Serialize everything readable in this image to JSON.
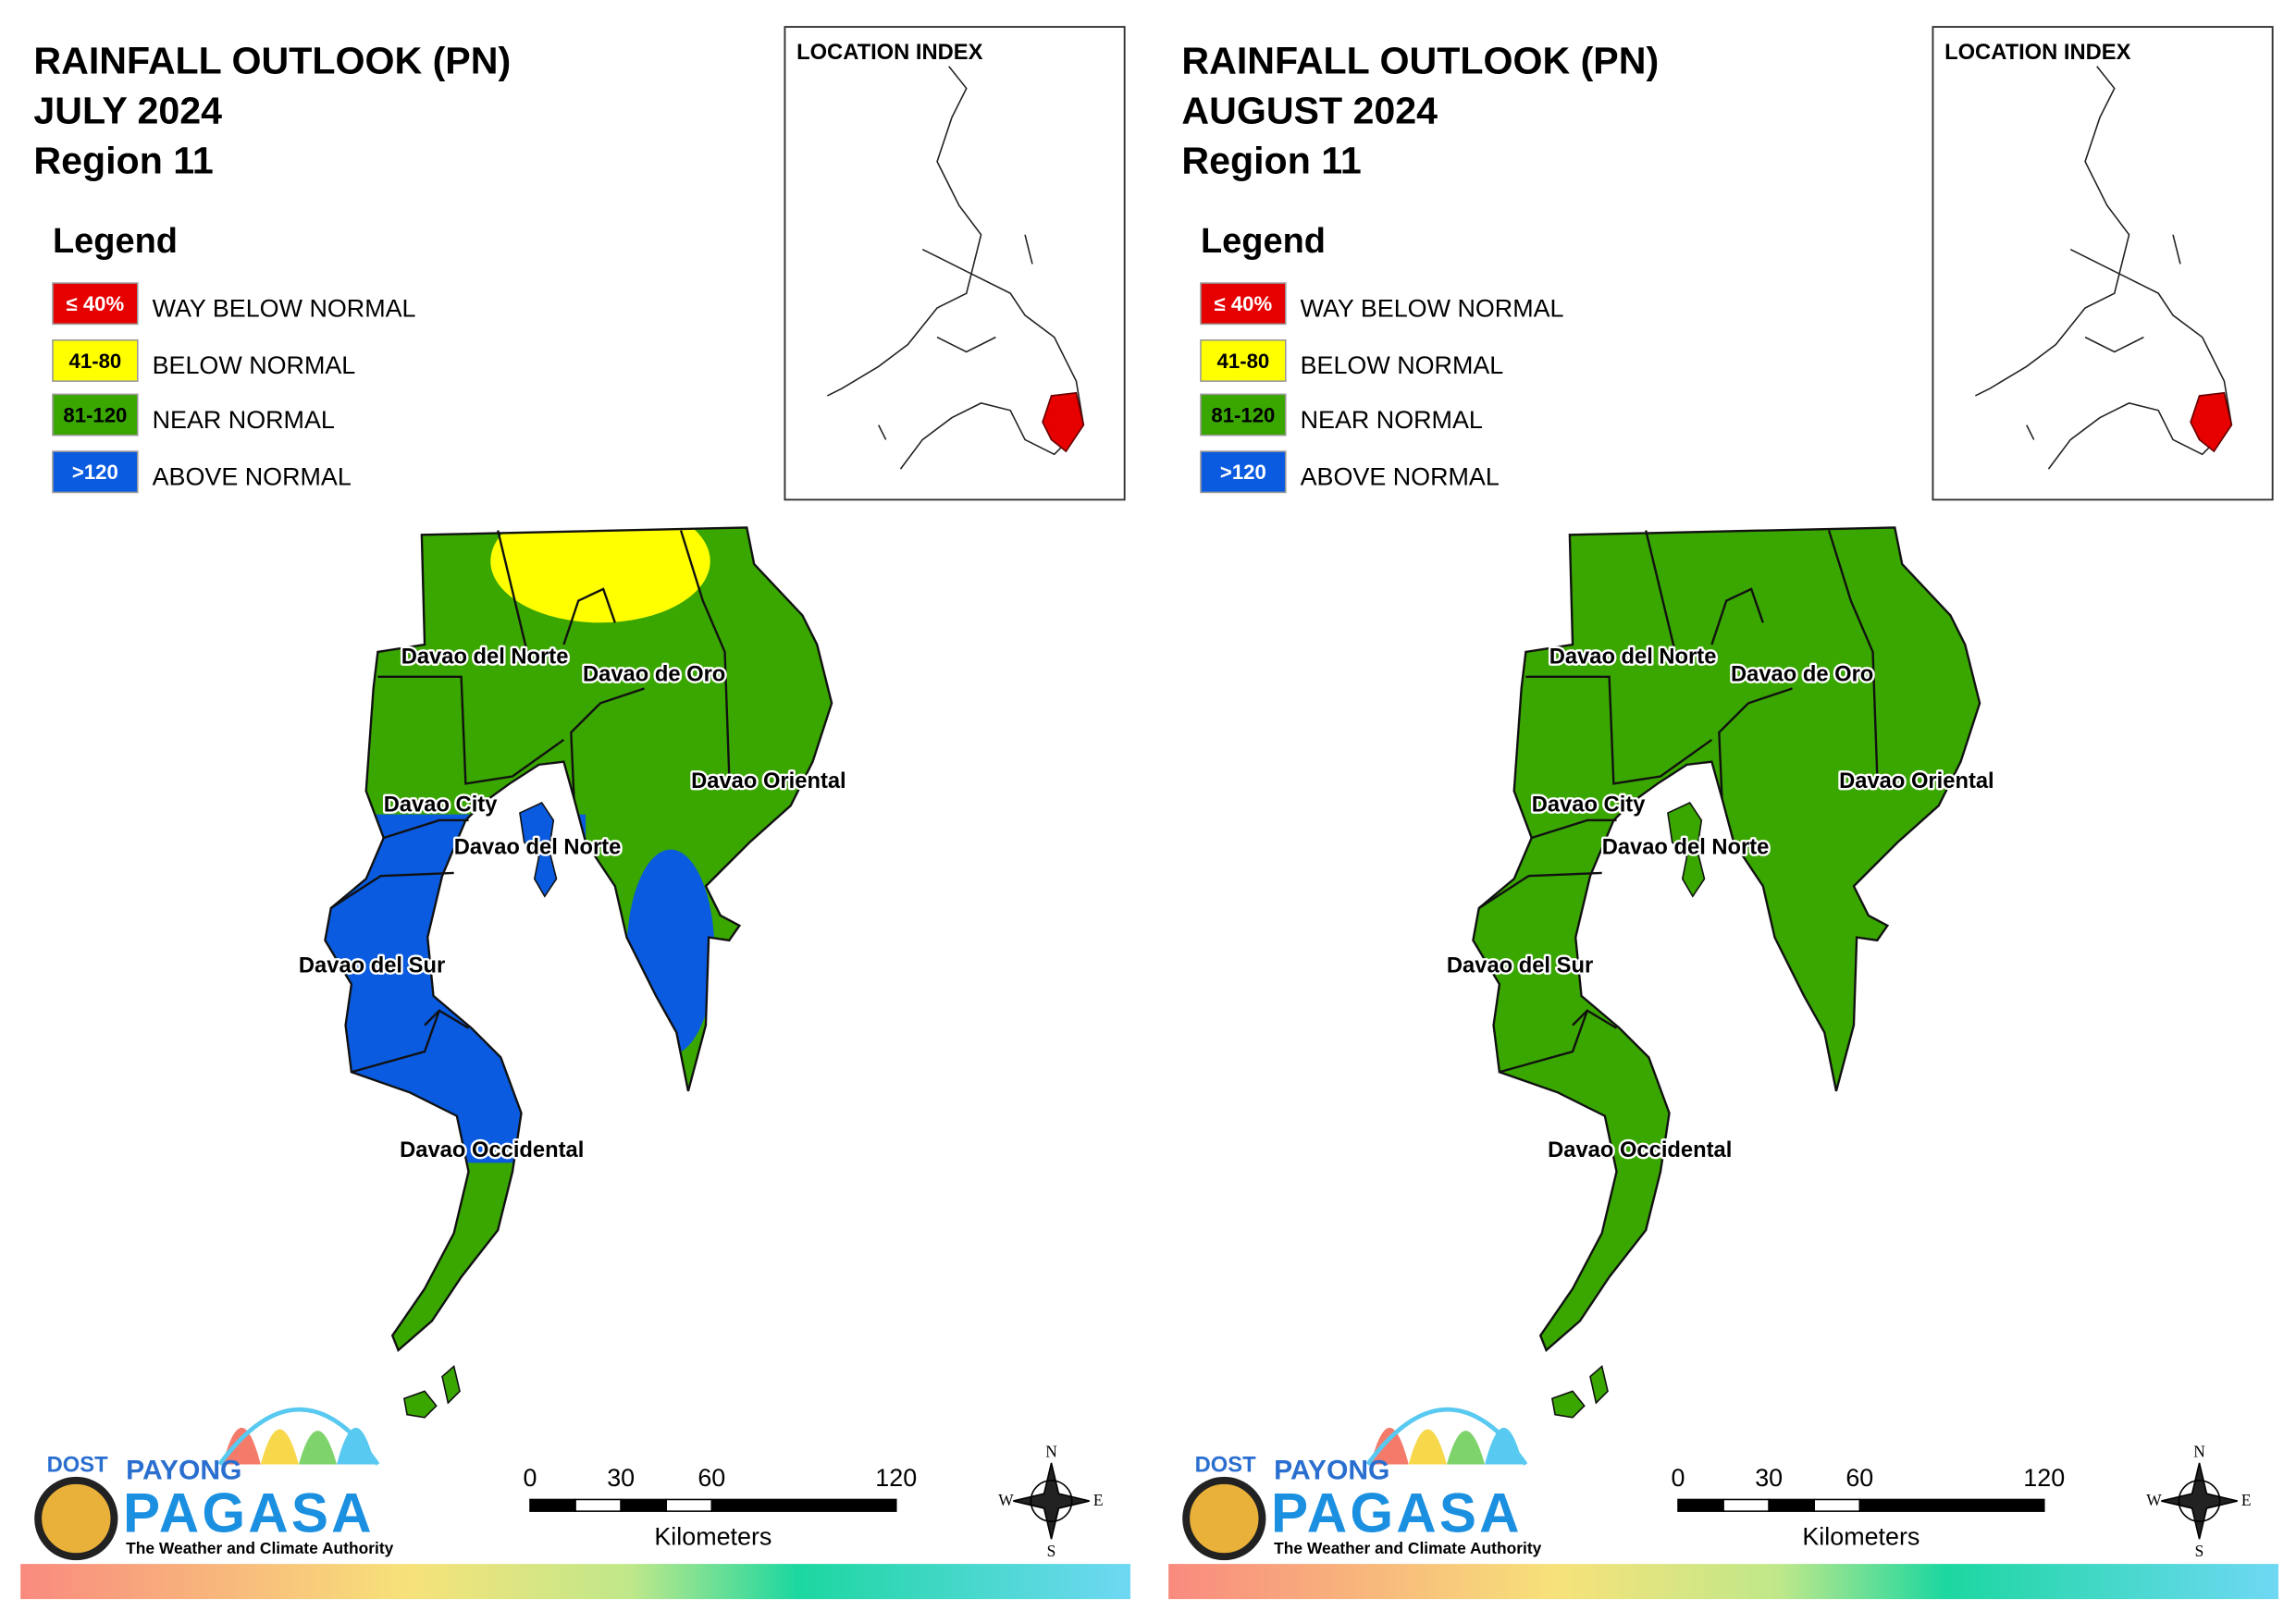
{
  "panels": [
    {
      "title": [
        "RAINFALL OUTLOOK (PN)",
        "JULY 2024",
        "Region 11"
      ],
      "legend": {
        "title": "Legend",
        "items": [
          {
            "swatch": "≤ 40%",
            "label": "WAY BELOW NORMAL",
            "color": "#e60000"
          },
          {
            "swatch": "41-80",
            "label": "BELOW NORMAL",
            "color": "#ffff00"
          },
          {
            "swatch": "81-120",
            "label": "NEAR NORMAL",
            "color": "#3aa600"
          },
          {
            "swatch": ">120",
            "label": "ABOVE NORMAL",
            "color": "#0a5be0"
          }
        ]
      },
      "location_index": "LOCATION INDEX",
      "places": [
        "Davao del Norte",
        "Davao de Oro",
        "Davao Oriental",
        "Davao City",
        "Davao del Norte",
        "Davao del Sur",
        "Davao Occidental"
      ],
      "scale": {
        "ticks": [
          0,
          30,
          60,
          120
        ],
        "unit": "Kilometers"
      },
      "compass": [
        "N",
        "W",
        "E",
        "S"
      ],
      "logo": {
        "dost": "DOST",
        "payong": "PAYONG",
        "pagasa": "PAGASA",
        "tagline": "The Weather and Climate Authority"
      }
    },
    {
      "title": [
        "RAINFALL OUTLOOK (PN)",
        "AUGUST 2024",
        "Region 11"
      ],
      "legend": {
        "title": "Legend",
        "items": [
          {
            "swatch": "≤ 40%",
            "label": "WAY BELOW NORMAL",
            "color": "#e60000"
          },
          {
            "swatch": "41-80",
            "label": "BELOW NORMAL",
            "color": "#ffff00"
          },
          {
            "swatch": "81-120",
            "label": "NEAR NORMAL",
            "color": "#3aa600"
          },
          {
            "swatch": ">120",
            "label": "ABOVE NORMAL",
            "color": "#0a5be0"
          }
        ]
      },
      "location_index": "LOCATION INDEX",
      "places": [
        "Davao del Norte",
        "Davao de Oro",
        "Davao Oriental",
        "Davao City",
        "Davao del Norte",
        "Davao del Sur",
        "Davao Occidental"
      ],
      "scale": {
        "ticks": [
          0,
          30,
          60,
          120
        ],
        "unit": "Kilometers"
      },
      "compass": [
        "N",
        "W",
        "E",
        "S"
      ],
      "logo": {
        "dost": "DOST",
        "payong": "PAYONG",
        "pagasa": "PAGASA",
        "tagline": "The Weather and Climate Authority"
      }
    }
  ]
}
